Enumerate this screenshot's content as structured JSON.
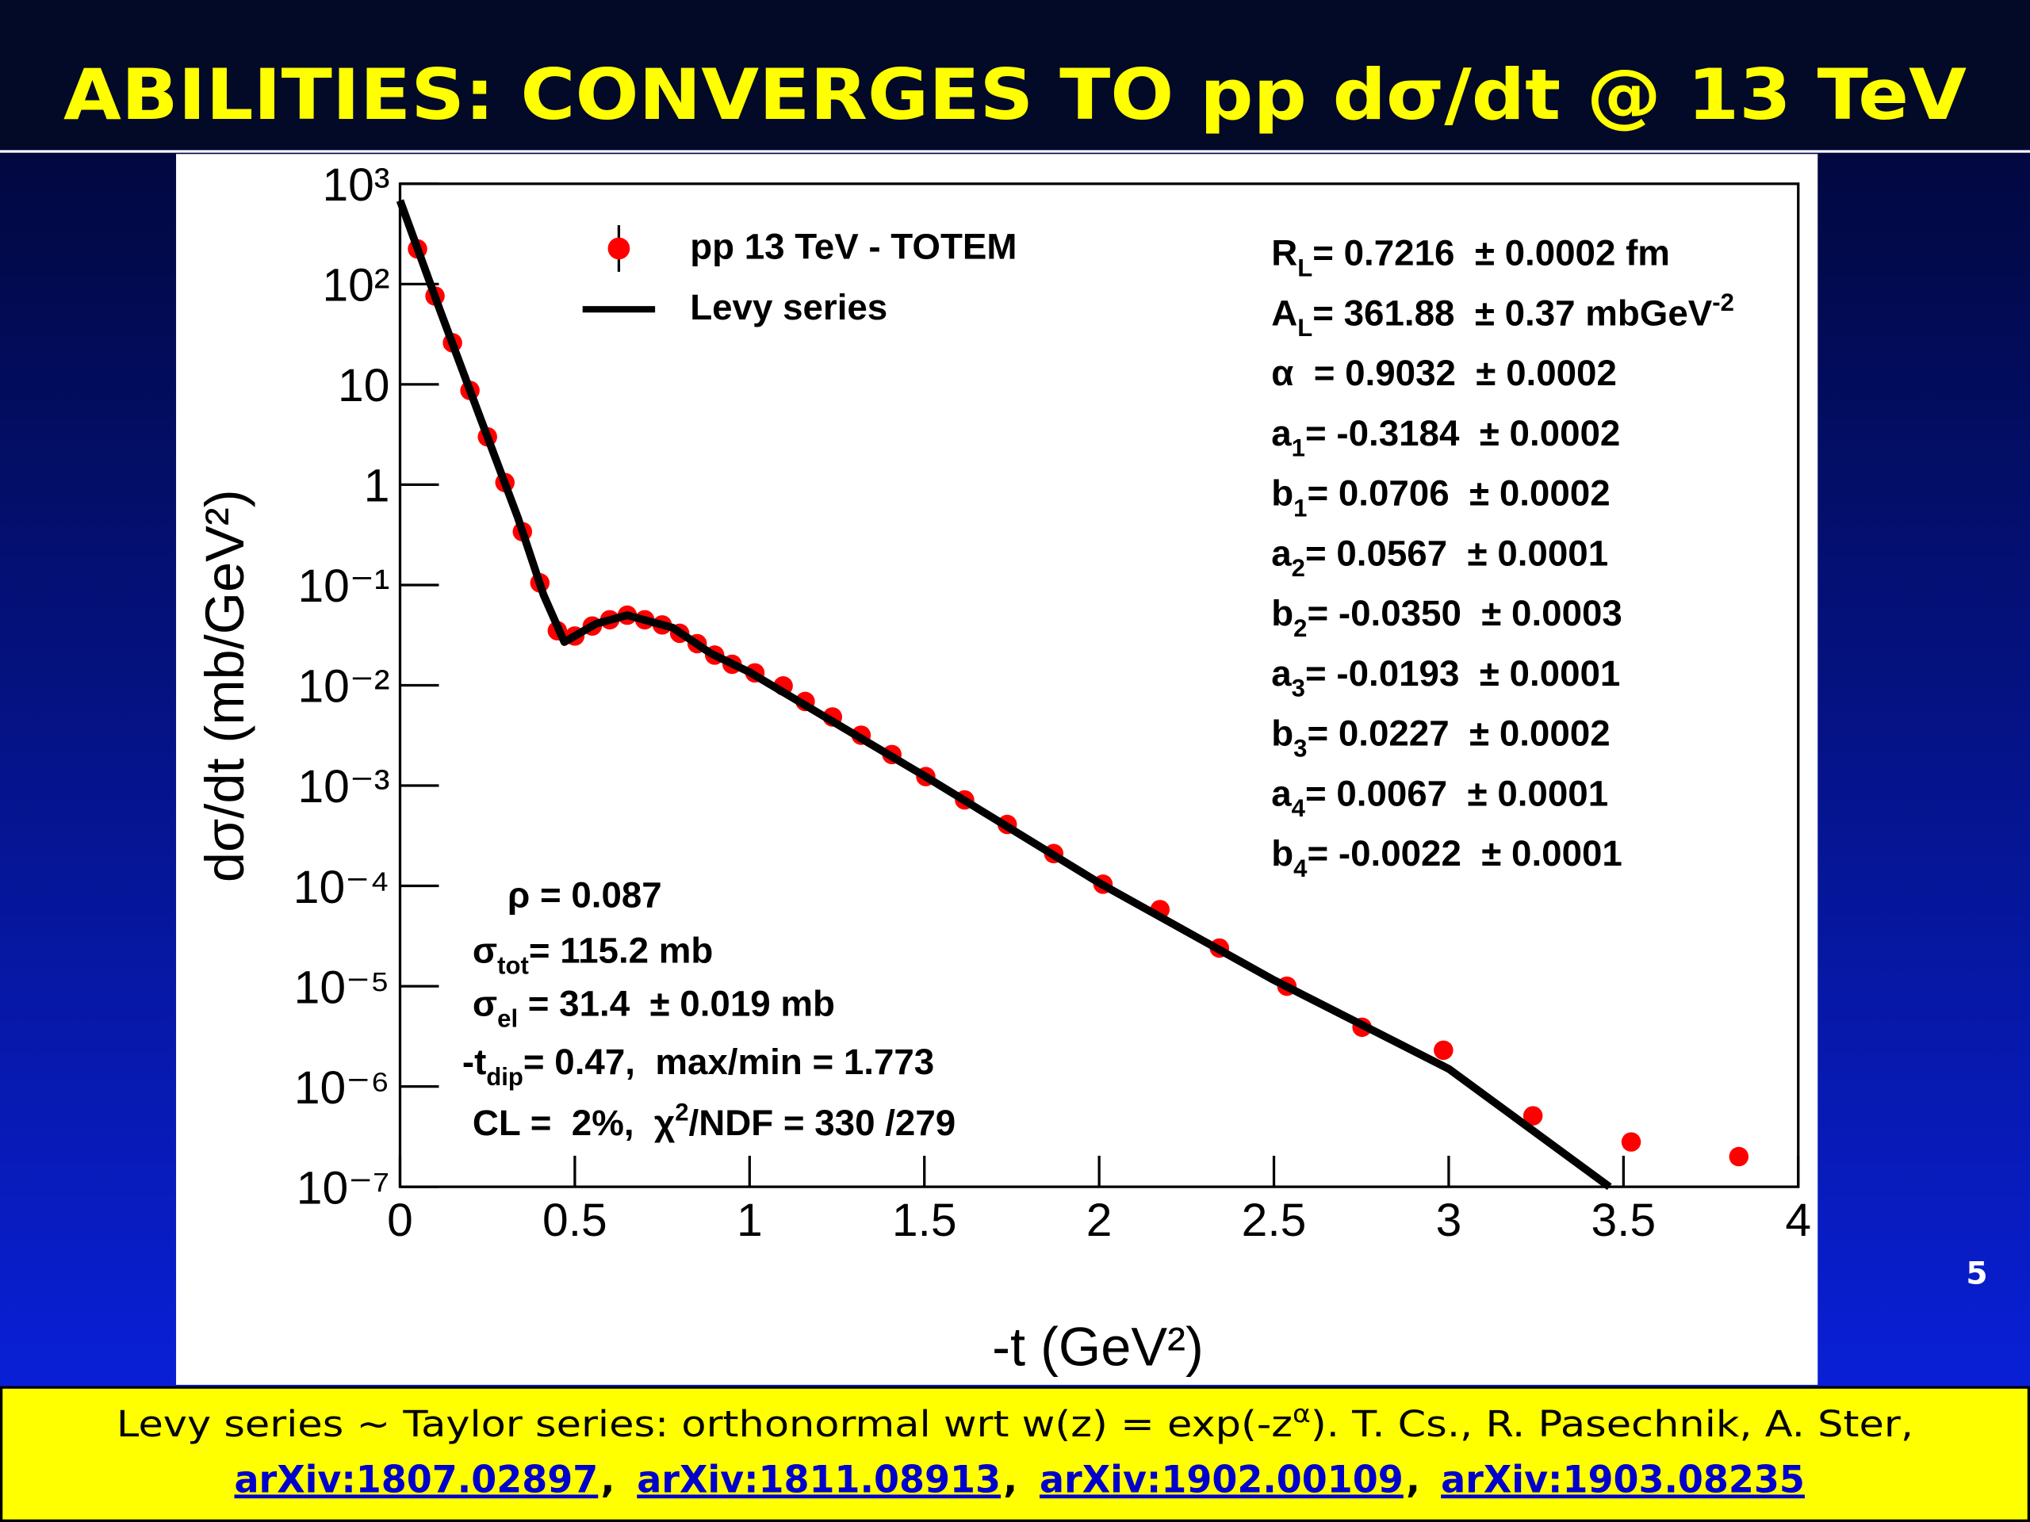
{
  "slide": {
    "title": "ABILITIES: CONVERGES TO pp dσ/dt @ 13 TeV",
    "page_number": "5",
    "footer": {
      "line1": [
        {
          "text": "Levy series ~ Taylor series: orthonormal wrt w(z) = exp(-z"
        },
        {
          "text": "α",
          "shift": "sup"
        },
        {
          "text": "). T. Cs., R. Pasechnik, A. Ster,"
        }
      ],
      "links": [
        "arXiv:1807.02897",
        "arXiv:1811.08913",
        "arXiv:1902.00109",
        "arXiv:1903.08235"
      ],
      "separator": ","
    }
  },
  "chart_data": {
    "type": "scatter",
    "x_label": "-t (GeV²)",
    "y_label": "dσ/dt (mb/GeV²)",
    "xlim": [
      0,
      4
    ],
    "xticks": [
      0,
      0.5,
      1,
      1.5,
      2,
      2.5,
      3,
      3.5,
      4
    ],
    "ylim": [
      1e-07,
      1000
    ],
    "log_y": true,
    "yticks": [
      {
        "value": 1000,
        "label": "10³"
      },
      {
        "value": 100,
        "label": "10²"
      },
      10,
      1,
      {
        "value": 0.1,
        "label": "10⁻¹"
      },
      {
        "value": 0.01,
        "label": "10⁻²"
      },
      {
        "value": 0.001,
        "label": "10⁻³"
      },
      {
        "value": 0.0001,
        "label": "10⁻⁴"
      },
      {
        "value": 1e-05,
        "label": "10⁻⁵"
      },
      {
        "value": 1e-06,
        "label": "10⁻⁶"
      },
      {
        "value": 1e-07,
        "label": "10⁻⁷"
      }
    ],
    "legend": "top-left",
    "series": [
      {
        "name": "pp 13 TeV - TOTEM",
        "color": "#ff0000",
        "kind": "points",
        "x": [
          0.05,
          0.1,
          0.15,
          0.2,
          0.25,
          0.3,
          0.35,
          0.4,
          0.45,
          0.5,
          0.55,
          0.6,
          0.65,
          0.7,
          0.75,
          0.8,
          0.85,
          0.9,
          0.95,
          1.015,
          1.096,
          1.159,
          1.237,
          1.319,
          1.407,
          1.504,
          1.615,
          1.737,
          1.87,
          2.011,
          2.174,
          2.344,
          2.537,
          2.752,
          2.985,
          3.241,
          3.522,
          3.83
        ],
        "y": [
          224,
          76,
          26,
          8.7,
          3.0,
          1.05,
          0.34,
          0.105,
          0.035,
          0.031,
          0.039,
          0.045,
          0.05,
          0.045,
          0.04,
          0.033,
          0.026,
          0.02,
          0.0162,
          0.0133,
          0.00986,
          0.0069,
          0.00483,
          0.00318,
          0.00204,
          0.00123,
          0.00072,
          0.00041,
          0.00021,
          0.000104,
          5.8e-05,
          2.4e-05,
          1e-05,
          3.9e-06,
          2.3e-06,
          5.1e-07,
          2.8e-07,
          2e-07
        ]
      },
      {
        "name": "Levy series",
        "color": "#000000",
        "kind": "line",
        "x": [
          0,
          0.115,
          0.226,
          0.337,
          0.411,
          0.47,
          0.56,
          0.65,
          0.78,
          0.89,
          1.0,
          1.5,
          2.0,
          2.5,
          3.0,
          3.46
        ],
        "y": [
          680,
          54,
          5.0,
          0.47,
          0.079,
          0.027,
          0.041,
          0.05,
          0.0375,
          0.0207,
          0.0135,
          0.00125,
          0.000107,
          1.15e-05,
          1.5e-06,
          1e-07
        ]
      }
    ],
    "fit_parameters": [
      [
        {
          "text": "R"
        },
        {
          "text": "L",
          "shift": "sub"
        },
        {
          "text": "= 0.7216  ± 0.0002 fm"
        }
      ],
      [
        {
          "text": "A"
        },
        {
          "text": "L",
          "shift": "sub"
        },
        {
          "text": "= 361.88  ± 0.37 mbGeV"
        },
        {
          "text": "-2",
          "shift": "sup"
        }
      ],
      [
        {
          "text": "α  = 0.9032  ± 0.0002"
        }
      ],
      [
        {
          "text": "a"
        },
        {
          "text": "1",
          "shift": "sub"
        },
        {
          "text": "= -0.3184  ± 0.0002"
        }
      ],
      [
        {
          "text": "b"
        },
        {
          "text": "1",
          "shift": "sub"
        },
        {
          "text": "= 0.0706  ± 0.0002"
        }
      ],
      [
        {
          "text": "a"
        },
        {
          "text": "2",
          "shift": "sub"
        },
        {
          "text": "= 0.0567  ± 0.0001"
        }
      ],
      [
        {
          "text": "b"
        },
        {
          "text": "2",
          "shift": "sub"
        },
        {
          "text": "= -0.0350  ± 0.0003"
        }
      ],
      [
        {
          "text": "a"
        },
        {
          "text": "3",
          "shift": "sub"
        },
        {
          "text": "= -0.0193  ± 0.0001"
        }
      ],
      [
        {
          "text": "b"
        },
        {
          "text": "3",
          "shift": "sub"
        },
        {
          "text": "= 0.0227  ± 0.0002"
        }
      ],
      [
        {
          "text": "a"
        },
        {
          "text": "4",
          "shift": "sub"
        },
        {
          "text": "= 0.0067  ± 0.0001"
        }
      ],
      [
        {
          "text": "b"
        },
        {
          "text": "4",
          "shift": "sub"
        },
        {
          "text": "= -0.0022  ± 0.0001"
        }
      ]
    ],
    "derived": [
      [
        {
          "text": "ρ = 0.087"
        }
      ],
      [
        {
          "text": "σ"
        },
        {
          "text": "tot",
          "shift": "sub"
        },
        {
          "text": "= 115.2 mb"
        }
      ],
      [
        {
          "text": "σ"
        },
        {
          "text": "el",
          "shift": "sub"
        },
        {
          "text": " = 31.4  ± 0.019 mb"
        }
      ],
      [
        {
          "text": "-t"
        },
        {
          "text": "dip",
          "shift": "sub"
        },
        {
          "text": "= 0.47,  max/min = 1.773"
        }
      ],
      [
        {
          "text": "CL =  2%,  χ"
        },
        {
          "text": "2",
          "shift": "sup"
        },
        {
          "text": "/NDF = 330 /279"
        }
      ]
    ]
  }
}
